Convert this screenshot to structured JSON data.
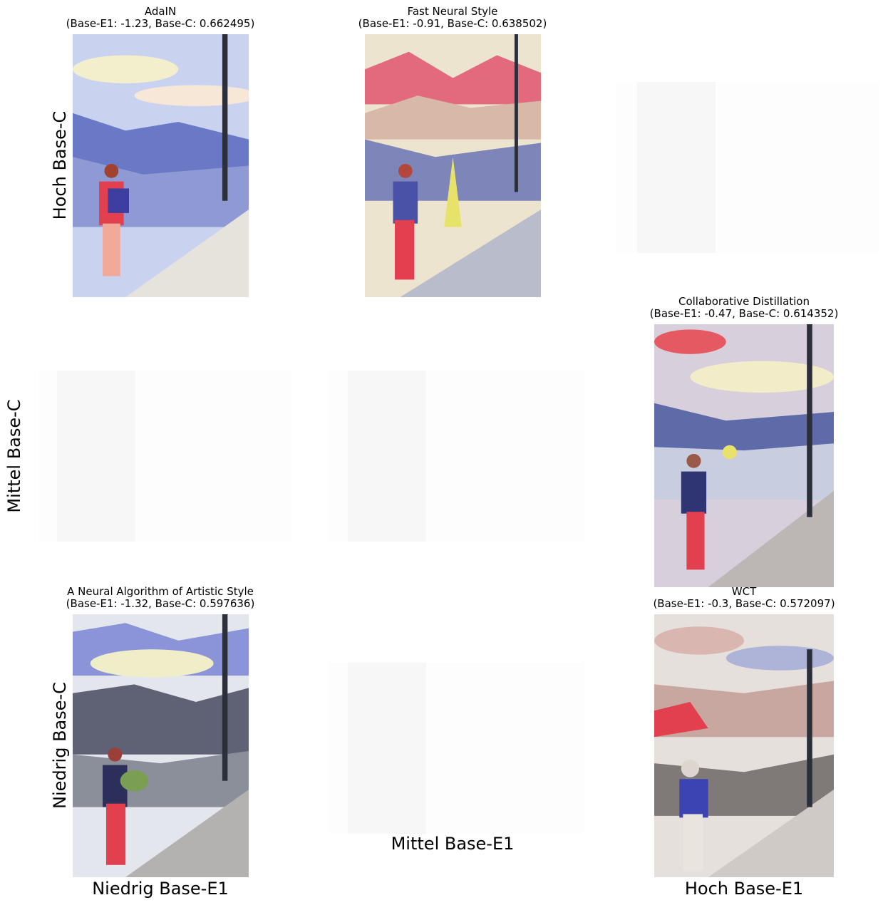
{
  "cells": {
    "high_low": {
      "method": "AdaIN",
      "scores": "(Base-E1: -1.23, Base-C: 0.662495)"
    },
    "high_mid": {
      "method": "Fast Neural Style",
      "scores": "(Base-E1: -0.91, Base-C: 0.638502)"
    },
    "mid_high": {
      "method": "Collaborative Distillation",
      "scores": "(Base-E1: -0.47, Base-C: 0.614352)"
    },
    "low_low": {
      "method": "A Neural Algorithm of Artistic Style",
      "scores": "(Base-E1: -1.32, Base-C: 0.597636)"
    },
    "low_high": {
      "method": "WCT",
      "scores": "(Base-E1: -0.3, Base-C: 0.572097)"
    }
  },
  "row_labels": {
    "high": "Hoch Base-C",
    "mid": "Mittel Base-C",
    "low": "Niedrig Base-C"
  },
  "col_labels": {
    "low": "Niedrig Base-E1",
    "mid": "Mittel Base-E1",
    "high": "Hoch Base-E1"
  },
  "palette": {
    "sky": "#c9d3ef",
    "cloud": "#f3eecc",
    "mountain": "#6a79c6",
    "red": "#e2404f",
    "tree": "#2b2f3a",
    "rock": "#d8d6d2"
  }
}
